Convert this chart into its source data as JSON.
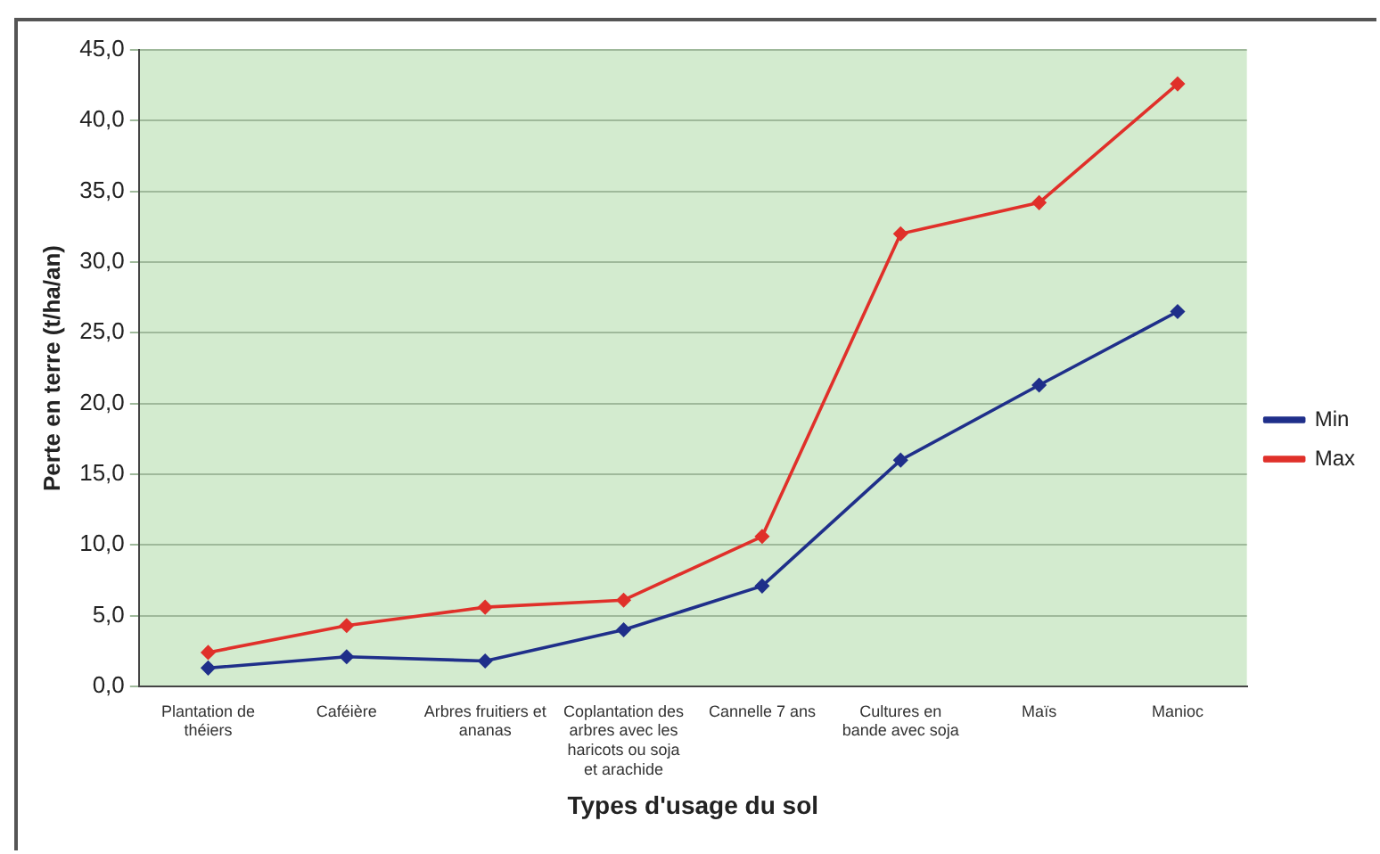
{
  "chart_data": {
    "type": "line",
    "xlabel": "Types d'usage du sol",
    "ylabel": "Perte en terre (t/ha/an)",
    "categories": [
      "Plantation de théiers",
      "Caféière",
      "Arbres fruitiers et ananas",
      "Coplantation des arbres avec les haricots ou soja et arachide",
      "Cannelle 7 ans",
      "Cultures en bande avec soja",
      "Maïs",
      "Manioc"
    ],
    "series": [
      {
        "name": "Min",
        "color": "#1f2f8a",
        "values": [
          1.3,
          2.1,
          1.8,
          4.0,
          7.1,
          16.0,
          21.3,
          26.5
        ]
      },
      {
        "name": "Max",
        "color": "#e0302a",
        "values": [
          2.4,
          4.3,
          5.6,
          6.1,
          10.6,
          32.0,
          34.2,
          42.6
        ]
      }
    ],
    "ylim": [
      0,
      45
    ],
    "yticks": [
      {
        "value": 0,
        "label": "0,0"
      },
      {
        "value": 5,
        "label": "5,0"
      },
      {
        "value": 10,
        "label": "10,0"
      },
      {
        "value": 15,
        "label": "15,0"
      },
      {
        "value": 20,
        "label": "20,0"
      },
      {
        "value": 25,
        "label": "25,0"
      },
      {
        "value": 30,
        "label": "30,0"
      },
      {
        "value": 35,
        "label": "35,0"
      },
      {
        "value": 40,
        "label": "40,0"
      },
      {
        "value": 45,
        "label": "45,0"
      }
    ],
    "grid": "y",
    "legend": "right",
    "marker": "diamond",
    "line_style": "solid"
  }
}
